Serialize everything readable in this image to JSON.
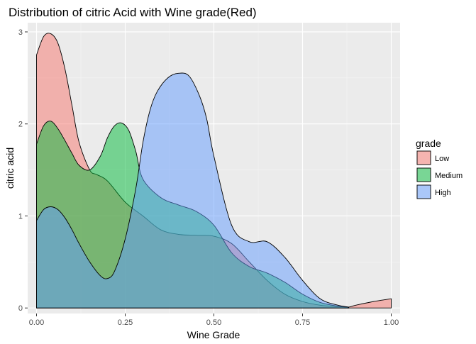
{
  "chart_data": {
    "type": "area",
    "title": "Distribution of citric Acid with Wine grade(Red)",
    "xlabel": "Wine Grade",
    "ylabel": "citric acid",
    "xlim": [
      -0.025,
      1.025
    ],
    "ylim": [
      -0.06,
      3.1
    ],
    "x_ticks": [
      0.0,
      0.25,
      0.5,
      0.75,
      1.0
    ],
    "x_tick_labels": [
      "0.00",
      "0.25",
      "0.50",
      "0.75",
      "1.00"
    ],
    "y_ticks": [
      0,
      1,
      2,
      3
    ],
    "y_tick_labels": [
      "0",
      "1",
      "2",
      "3"
    ],
    "grid": true,
    "legend": {
      "title": "grade",
      "position": "right"
    },
    "series": [
      {
        "name": "Low",
        "color": "#F8766D",
        "x": [
          0.0,
          0.02,
          0.04,
          0.06,
          0.08,
          0.1,
          0.12,
          0.15,
          0.17,
          0.2,
          0.25,
          0.3,
          0.35,
          0.4,
          0.45,
          0.5,
          0.55,
          0.6,
          0.65,
          0.7,
          0.75,
          0.8,
          0.85,
          0.88,
          0.9,
          0.95,
          1.0
        ],
        "y": [
          2.75,
          2.95,
          2.98,
          2.88,
          2.6,
          2.2,
          1.8,
          1.5,
          1.45,
          1.38,
          1.15,
          1.0,
          0.85,
          0.8,
          0.79,
          0.78,
          0.7,
          0.5,
          0.3,
          0.15,
          0.07,
          0.03,
          0.015,
          0.01,
          0.03,
          0.07,
          0.1
        ]
      },
      {
        "name": "Medium",
        "color": "#00BA38",
        "x": [
          0.0,
          0.02,
          0.04,
          0.06,
          0.08,
          0.1,
          0.12,
          0.15,
          0.18,
          0.2,
          0.22,
          0.24,
          0.26,
          0.28,
          0.3,
          0.35,
          0.4,
          0.45,
          0.5,
          0.55,
          0.6,
          0.65,
          0.7,
          0.75,
          0.8,
          0.85,
          0.88
        ],
        "y": [
          1.78,
          1.98,
          2.03,
          1.95,
          1.82,
          1.68,
          1.55,
          1.5,
          1.65,
          1.85,
          1.98,
          2.01,
          1.93,
          1.7,
          1.4,
          1.2,
          1.12,
          1.05,
          0.9,
          0.6,
          0.45,
          0.38,
          0.28,
          0.15,
          0.06,
          0.02,
          0.01
        ]
      },
      {
        "name": "High",
        "color": "#619CFF",
        "x": [
          0.0,
          0.02,
          0.04,
          0.06,
          0.08,
          0.1,
          0.12,
          0.15,
          0.18,
          0.2,
          0.22,
          0.25,
          0.28,
          0.3,
          0.32,
          0.34,
          0.37,
          0.4,
          0.43,
          0.46,
          0.48,
          0.5,
          0.55,
          0.6,
          0.65,
          0.7,
          0.75,
          0.8,
          0.85,
          0.88
        ],
        "y": [
          0.95,
          1.07,
          1.1,
          1.07,
          0.98,
          0.85,
          0.7,
          0.5,
          0.35,
          0.32,
          0.4,
          0.75,
          1.3,
          1.8,
          2.15,
          2.35,
          2.5,
          2.55,
          2.52,
          2.3,
          2.05,
          1.65,
          0.9,
          0.72,
          0.72,
          0.55,
          0.3,
          0.1,
          0.03,
          0.01
        ]
      }
    ]
  }
}
